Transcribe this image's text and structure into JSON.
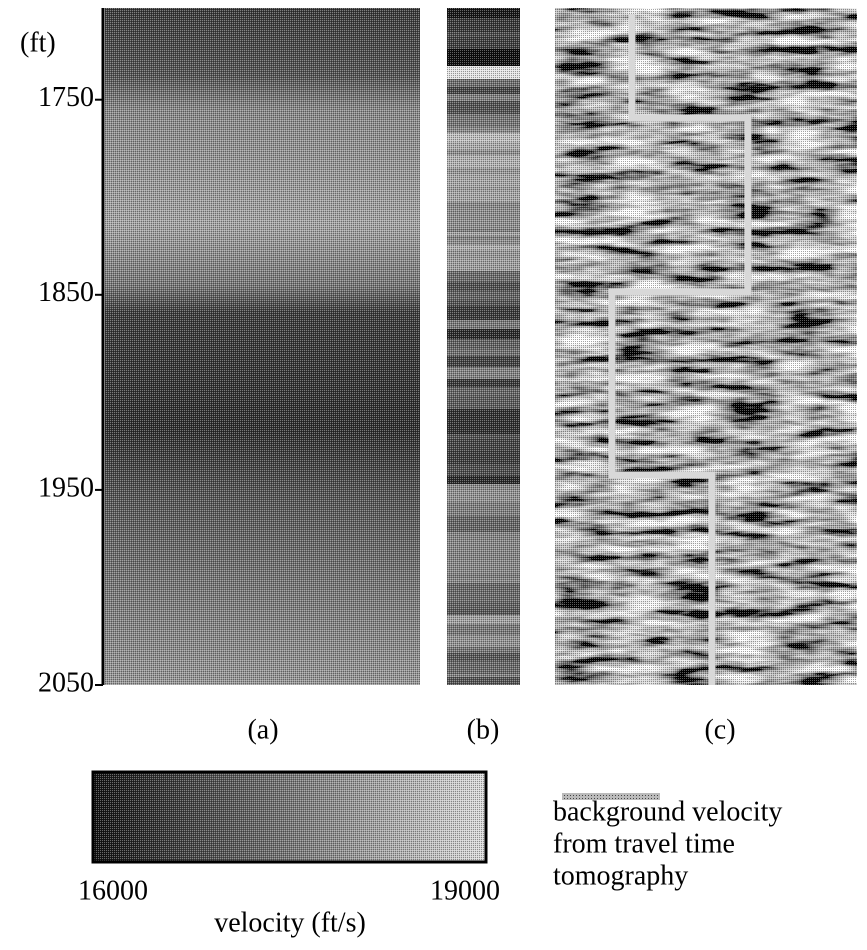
{
  "figure": {
    "depth_axis": {
      "unit": "(ft)",
      "ylim": [
        1703,
        2050
      ],
      "ticks": [
        1750,
        1850,
        1950,
        2050
      ]
    },
    "panels": [
      "(a)",
      "(b)",
      "(c)"
    ],
    "colorbar": {
      "min": 16000,
      "max": 19000,
      "title": "velocity (ft/s)"
    },
    "legend": {
      "lines": [
        "background velocity",
        "from travel time",
        "tomography"
      ]
    }
  }
}
